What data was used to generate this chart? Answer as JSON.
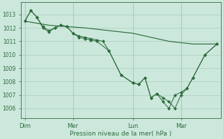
{
  "background_color": "#cce8dc",
  "grid_color": "#aaccbb",
  "line_color": "#2d6b3c",
  "marker_color": "#2d6b3c",
  "xlabel": "Pression niveau de la mer( hPa )",
  "xlabel_color": "#2d6b3c",
  "tick_color": "#2d6b3c",
  "ylim": [
    1005.3,
    1013.9
  ],
  "yticks": [
    1006,
    1007,
    1008,
    1009,
    1010,
    1011,
    1012,
    1013
  ],
  "xtick_labels": [
    "Dim",
    "Mer",
    "Lun",
    "Mar"
  ],
  "figsize": [
    3.2,
    2.0
  ],
  "dpi": 100,
  "smooth_x": [
    0,
    2,
    5,
    9,
    12,
    14,
    16
  ],
  "smooth_y": [
    1012.5,
    1012.2,
    1012.0,
    1011.6,
    1011.0,
    1010.8,
    1010.8
  ],
  "series1_x": [
    0,
    0.5,
    1,
    1.5,
    2,
    2.5,
    3,
    3.5,
    4,
    4.5,
    5,
    5.5,
    6,
    6.5,
    7,
    8,
    9,
    9.5,
    10,
    10.5,
    11,
    11.5,
    12,
    12.5,
    13,
    13.5,
    14,
    15,
    16
  ],
  "series1_y": [
    1012.5,
    1013.3,
    1012.8,
    1012.1,
    1011.8,
    1012.0,
    1012.2,
    1012.1,
    1011.6,
    1011.4,
    1011.3,
    1011.2,
    1011.1,
    1011.0,
    1010.3,
    1008.5,
    1007.9,
    1007.8,
    1008.3,
    1006.8,
    1007.1,
    1006.8,
    1006.5,
    1006.0,
    1007.0,
    1007.5,
    1008.3,
    1010.0,
    1010.8
  ],
  "series2_x": [
    0,
    0.5,
    1,
    1.5,
    2,
    2.5,
    3,
    3.5,
    4,
    4.5,
    5,
    5.5,
    6,
    7,
    8,
    9,
    9.5,
    10,
    10.5,
    11,
    11.5,
    12,
    12.5,
    13,
    13.5,
    14,
    15,
    16
  ],
  "series2_y": [
    1012.5,
    1013.3,
    1012.8,
    1012.0,
    1011.7,
    1012.0,
    1012.2,
    1012.1,
    1011.6,
    1011.3,
    1011.2,
    1011.1,
    1011.0,
    1010.3,
    1008.5,
    1007.9,
    1007.8,
    1008.3,
    1006.8,
    1007.1,
    1006.5,
    1006.0,
    1007.0,
    1007.2,
    1007.5,
    1008.3,
    1010.0,
    1010.8
  ]
}
